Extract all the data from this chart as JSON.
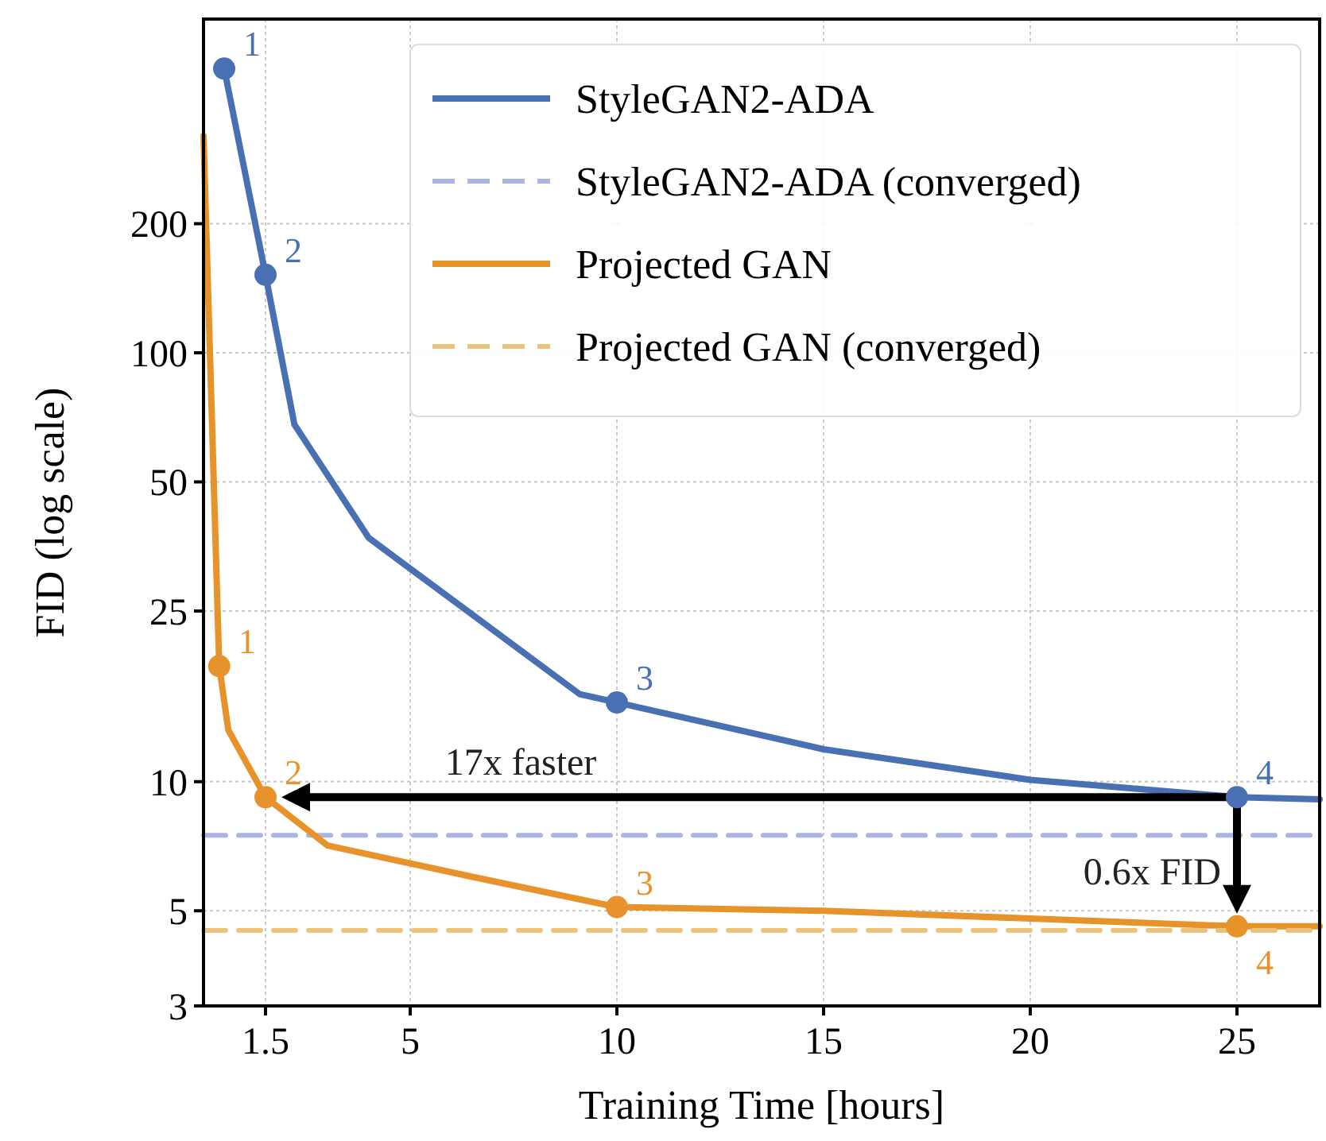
{
  "chart_data": {
    "type": "line",
    "xlabel": "Training Time [hours]",
    "ylabel": "FID (log scale)",
    "log": "y",
    "grid": true,
    "legend": "top right",
    "xlim": [
      0,
      27
    ],
    "xticks": [
      1.5,
      5,
      10,
      15,
      20,
      25
    ],
    "ylim": [
      3,
      600
    ],
    "yticks": [
      3,
      5,
      10,
      25,
      50,
      100,
      200
    ],
    "series": [
      {
        "name": "StyleGAN2-ADA",
        "color": "#4a70b4",
        "line_style": "solid",
        "x": [
          0.5,
          1.5,
          2.2,
          4.0,
          9.1,
          10,
          15,
          20,
          25,
          27
        ],
        "values": [
          460,
          152,
          68,
          37,
          16,
          15.3,
          11.9,
          10.1,
          9.2,
          9.1
        ]
      },
      {
        "name": "StyleGAN2-ADA (converged)",
        "color": "#aab6e2",
        "line_style": "dashed",
        "x": [
          0,
          27
        ],
        "values": [
          7.5,
          7.5
        ]
      },
      {
        "name": "Projected GAN",
        "color": "#e8922c",
        "line_style": "solid",
        "x": [
          0,
          0.38,
          0.6,
          1.5,
          3,
          6.5,
          10,
          15,
          25,
          27
        ],
        "values": [
          320,
          18.6,
          13.2,
          9.2,
          7.1,
          6.0,
          5.1,
          5.0,
          4.6,
          4.6
        ]
      },
      {
        "name": "Projected GAN (converged)",
        "color": "#eac27c",
        "line_style": "dashed",
        "x": [
          0,
          27
        ],
        "values": [
          4.5,
          4.5
        ]
      },
      {
        "type": "scatter",
        "color": "#4a70b4",
        "marker": "circle",
        "x": [
          0.5,
          1.5,
          10,
          25
        ],
        "values": [
          460,
          152,
          15.3,
          9.2
        ]
      },
      {
        "type": "scatter",
        "color": "#e8922c",
        "marker": "circle",
        "x": [
          0.38,
          1.5,
          10,
          25
        ],
        "values": [
          18.6,
          9.2,
          5.1,
          4.6
        ]
      }
    ],
    "annotations": [
      {
        "text": "1",
        "x": 0.5,
        "y": 460
      },
      {
        "text": "2",
        "x": 1.5,
        "y": 152
      },
      {
        "text": "3",
        "x": 10,
        "y": 15.3
      },
      {
        "text": "4",
        "x": 25,
        "y": 9.2
      },
      {
        "text": "1",
        "x": 0.38,
        "y": 18.6
      },
      {
        "text": "2",
        "x": 1.5,
        "y": 9.2
      },
      {
        "text": "3",
        "x": 10,
        "y": 5.1
      },
      {
        "text": "4",
        "x": 25,
        "y": 4.6
      },
      "17x faster",
      "0.6x FID"
    ]
  }
}
